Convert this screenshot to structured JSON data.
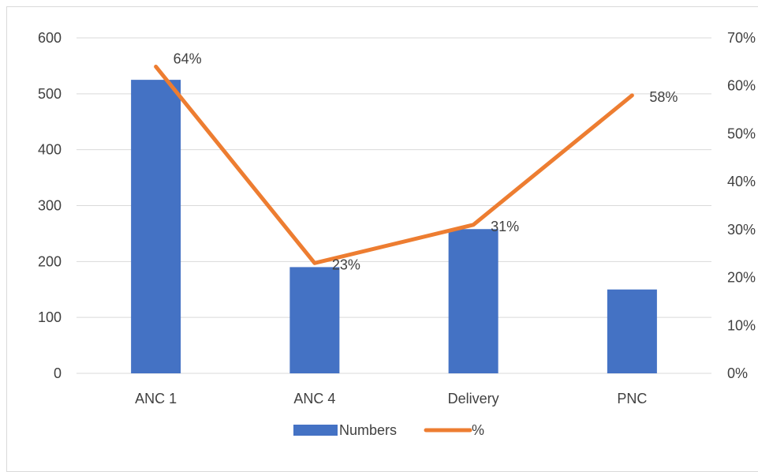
{
  "chart_data": {
    "type": "bar",
    "categories": [
      "ANC 1",
      "ANC 4",
      "Delivery",
      "PNC"
    ],
    "series": [
      {
        "name": "Numbers",
        "type": "bar",
        "axis": "left",
        "color": "#4472c4",
        "values": [
          525,
          190,
          258,
          150
        ]
      },
      {
        "name": "%",
        "type": "line",
        "axis": "right",
        "color": "#ed7d31",
        "values": [
          64,
          23,
          31,
          58
        ],
        "data_labels": [
          "64%",
          "23%",
          "31%",
          "58%"
        ]
      }
    ],
    "y_left": {
      "ylim": [
        0,
        600
      ],
      "ticks": [
        "0",
        "100",
        "200",
        "300",
        "400",
        "500",
        "600"
      ]
    },
    "y_right": {
      "ylim": [
        0,
        70
      ],
      "ticks": [
        "0%",
        "10%",
        "20%",
        "30%",
        "40%",
        "50%",
        "60%",
        "70%"
      ]
    },
    "grid": true,
    "legend_position": "bottom"
  },
  "colors": {
    "grid": "#d9d9d9",
    "text": "#404040",
    "bar": "#4472c4",
    "line": "#ed7d31"
  }
}
